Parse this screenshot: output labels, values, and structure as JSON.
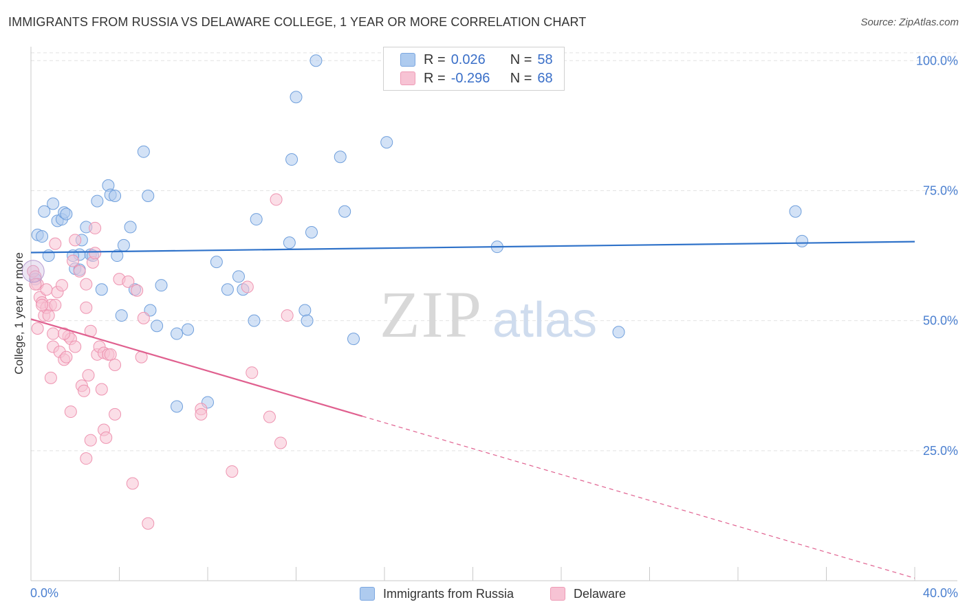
{
  "title": "IMMIGRANTS FROM RUSSIA VS DELAWARE COLLEGE, 1 YEAR OR MORE CORRELATION CHART",
  "source": "Source: ZipAtlas.com",
  "watermark": {
    "zip": "ZIP",
    "atlas": "atlas"
  },
  "legend": {
    "r_label": "R =",
    "n_label": "N =",
    "rows": [
      {
        "r": "0.026",
        "n": "58",
        "color": "#aecbef",
        "border": "#7aa6e0"
      },
      {
        "r": "-0.296",
        "n": "68",
        "color": "#f7c3d4",
        "border": "#ee9ab5"
      }
    ]
  },
  "chart_data": {
    "type": "scatter",
    "title": "IMMIGRANTS FROM RUSSIA VS DELAWARE COLLEGE, 1 YEAR OR MORE CORRELATION CHART",
    "xlabel": "",
    "ylabel": "College, 1 year or more",
    "xlim": [
      0,
      40
    ],
    "ylim": [
      0,
      104
    ],
    "x_tick_labels": [
      "0.0%",
      "40.0%"
    ],
    "y_ticks": [
      25,
      50,
      75,
      100
    ],
    "y_tick_labels": [
      "25.0%",
      "50.0%",
      "75.0%",
      "100.0%"
    ],
    "grid": true,
    "series": [
      {
        "name": "Immigrants from Russia",
        "color": "#aecbef",
        "edge": "#6f9fdc",
        "line_color": "#2f72c9",
        "trend": {
          "x0": 0,
          "y0": 63.1,
          "x1": 40,
          "y1": 65.2,
          "dashed_from": null
        },
        "points": [
          [
            0.3,
            66.5
          ],
          [
            0.5,
            66.2
          ],
          [
            0.8,
            62.5
          ],
          [
            0.6,
            71.0
          ],
          [
            1.0,
            72.5
          ],
          [
            1.2,
            69.2
          ],
          [
            1.4,
            69.5
          ],
          [
            1.5,
            70.8
          ],
          [
            1.6,
            70.5
          ],
          [
            2.0,
            60.0
          ],
          [
            2.2,
            62.7
          ],
          [
            2.3,
            65.5
          ],
          [
            2.5,
            68.0
          ],
          [
            2.7,
            62.7
          ],
          [
            2.8,
            62.5
          ],
          [
            3.0,
            73.0
          ],
          [
            3.2,
            56.0
          ],
          [
            3.5,
            76.0
          ],
          [
            3.6,
            74.2
          ],
          [
            3.8,
            74.0
          ],
          [
            3.9,
            62.5
          ],
          [
            4.2,
            64.5
          ],
          [
            4.1,
            51.0
          ],
          [
            4.5,
            68.0
          ],
          [
            4.7,
            56.0
          ],
          [
            5.1,
            82.5
          ],
          [
            5.3,
            74.0
          ],
          [
            5.4,
            52.0
          ],
          [
            5.7,
            49.0
          ],
          [
            5.9,
            56.8
          ],
          [
            6.6,
            47.5
          ],
          [
            7.1,
            48.3
          ],
          [
            6.6,
            33.5
          ],
          [
            8.0,
            34.3
          ],
          [
            8.4,
            61.3
          ],
          [
            8.9,
            56.0
          ],
          [
            9.4,
            58.5
          ],
          [
            9.6,
            56.0
          ],
          [
            10.1,
            50.0
          ],
          [
            10.2,
            69.5
          ],
          [
            11.7,
            65.0
          ],
          [
            11.8,
            81.0
          ],
          [
            12.0,
            93.0
          ],
          [
            12.4,
            52.0
          ],
          [
            12.5,
            50.0
          ],
          [
            12.7,
            67.0
          ],
          [
            12.9,
            100.0
          ],
          [
            14.0,
            81.5
          ],
          [
            14.2,
            71.0
          ],
          [
            14.6,
            46.5
          ],
          [
            16.1,
            84.3
          ],
          [
            21.1,
            64.2
          ],
          [
            26.6,
            47.8
          ],
          [
            34.6,
            71.0
          ],
          [
            34.9,
            65.3
          ],
          [
            0.2,
            58.0
          ],
          [
            1.9,
            62.5
          ],
          [
            2.2,
            59.8
          ]
        ]
      },
      {
        "name": "Delaware",
        "color": "#f7c3d4",
        "edge": "#ee93b0",
        "line_color": "#e0608f",
        "trend": {
          "x0": 0,
          "y0": 50.3,
          "x1": 40,
          "y1": 0.5,
          "dashed_from": 15.0
        },
        "points": [
          [
            0.1,
            59.5
          ],
          [
            0.2,
            58.5
          ],
          [
            0.3,
            57.0
          ],
          [
            0.3,
            48.5
          ],
          [
            0.4,
            54.5
          ],
          [
            0.5,
            53.5
          ],
          [
            0.6,
            51.0
          ],
          [
            0.7,
            52.5
          ],
          [
            0.7,
            56.0
          ],
          [
            0.8,
            51.0
          ],
          [
            0.9,
            53.0
          ],
          [
            0.9,
            39.0
          ],
          [
            1.0,
            47.5
          ],
          [
            1.0,
            45.0
          ],
          [
            1.1,
            53.0
          ],
          [
            1.1,
            64.8
          ],
          [
            1.2,
            55.5
          ],
          [
            1.3,
            44.0
          ],
          [
            1.4,
            56.8
          ],
          [
            1.5,
            42.5
          ],
          [
            1.6,
            43.0
          ],
          [
            1.7,
            47.0
          ],
          [
            1.8,
            32.5
          ],
          [
            1.8,
            46.5
          ],
          [
            1.9,
            61.5
          ],
          [
            2.0,
            65.5
          ],
          [
            2.0,
            45.0
          ],
          [
            2.2,
            59.5
          ],
          [
            2.3,
            37.5
          ],
          [
            2.4,
            36.5
          ],
          [
            2.5,
            57.0
          ],
          [
            2.5,
            52.5
          ],
          [
            2.5,
            23.5
          ],
          [
            2.6,
            39.5
          ],
          [
            2.7,
            27.0
          ],
          [
            2.7,
            48.0
          ],
          [
            2.8,
            61.2
          ],
          [
            2.9,
            63.0
          ],
          [
            2.9,
            67.8
          ],
          [
            3.0,
            43.5
          ],
          [
            3.1,
            45.0
          ],
          [
            3.2,
            36.8
          ],
          [
            3.3,
            43.8
          ],
          [
            3.3,
            29.0
          ],
          [
            3.4,
            27.5
          ],
          [
            3.5,
            43.5
          ],
          [
            3.6,
            43.5
          ],
          [
            3.8,
            32.0
          ],
          [
            3.8,
            41.5
          ],
          [
            4.0,
            58.0
          ],
          [
            4.4,
            57.5
          ],
          [
            4.6,
            18.7
          ],
          [
            4.8,
            55.8
          ],
          [
            5.0,
            43.0
          ],
          [
            5.1,
            50.5
          ],
          [
            5.3,
            11.0
          ],
          [
            7.7,
            33.0
          ],
          [
            7.7,
            32.0
          ],
          [
            9.1,
            21.0
          ],
          [
            9.8,
            56.5
          ],
          [
            10.0,
            40.0
          ],
          [
            10.8,
            31.5
          ],
          [
            11.3,
            26.5
          ],
          [
            11.1,
            73.3
          ],
          [
            11.6,
            51.0
          ],
          [
            0.2,
            57.0
          ],
          [
            0.5,
            53.0
          ],
          [
            1.5,
            47.5
          ]
        ]
      }
    ]
  },
  "bottom_legend": [
    {
      "label": "Immigrants from Russia",
      "color": "#aecbef",
      "border": "#7aa6e0"
    },
    {
      "label": "Delaware",
      "color": "#f7c3d4",
      "border": "#ee9ab5"
    }
  ]
}
